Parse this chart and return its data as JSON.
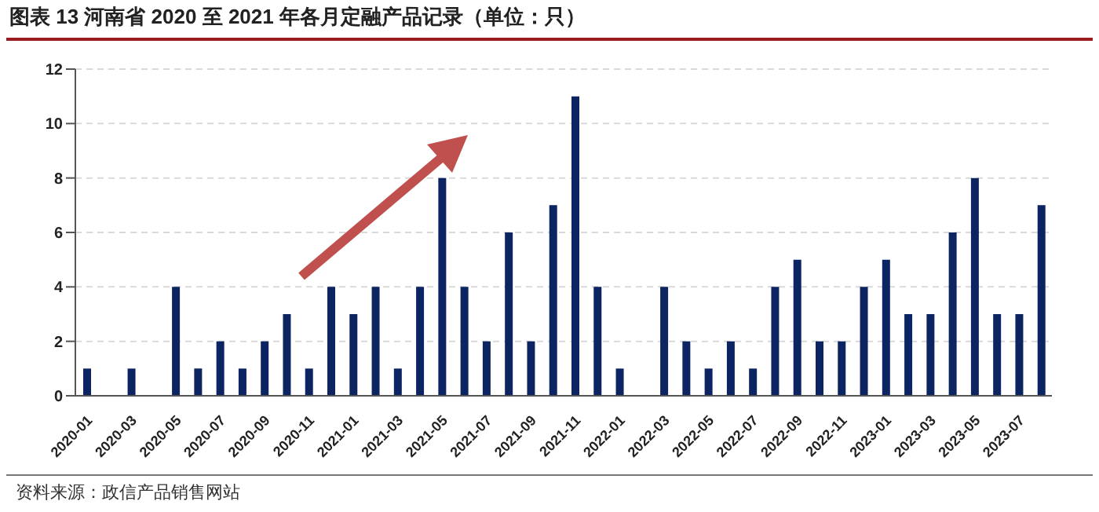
{
  "chart_data": {
    "type": "bar",
    "title": "图表 13 河南省 2020 至 2021 年各月定融产品记录（单位：只）",
    "categories": [
      "2020-01",
      null,
      "2020-03",
      null,
      "2020-05",
      null,
      "2020-07",
      null,
      "2020-09",
      null,
      "2020-11",
      null,
      "2021-01",
      null,
      "2021-03",
      null,
      "2021-05",
      null,
      "2021-07",
      null,
      "2021-09",
      null,
      "2021-11",
      null,
      "2022-01",
      null,
      "2022-03",
      null,
      "2022-05",
      null,
      "2022-07",
      null,
      "2022-09",
      null,
      "2022-11",
      null,
      "2023-01",
      null,
      "2023-03",
      null,
      "2023-05",
      null,
      "2023-07",
      null
    ],
    "values": [
      1,
      0,
      1,
      0,
      4,
      1,
      2,
      1,
      2,
      3,
      1,
      4,
      3,
      4,
      1,
      4,
      8,
      4,
      2,
      6,
      2,
      7,
      11,
      4,
      1,
      0,
      4,
      2,
      1,
      2,
      1,
      4,
      5,
      2,
      2,
      4,
      5,
      3,
      3,
      6,
      8,
      3,
      3,
      7
    ],
    "color": "#0c2461",
    "ylim": [
      0,
      12
    ],
    "yticks": [
      0,
      2,
      4,
      6,
      8,
      10,
      12
    ],
    "grid": "y",
    "annotations": [
      "资料来源：政信产品销售网站"
    ]
  }
}
